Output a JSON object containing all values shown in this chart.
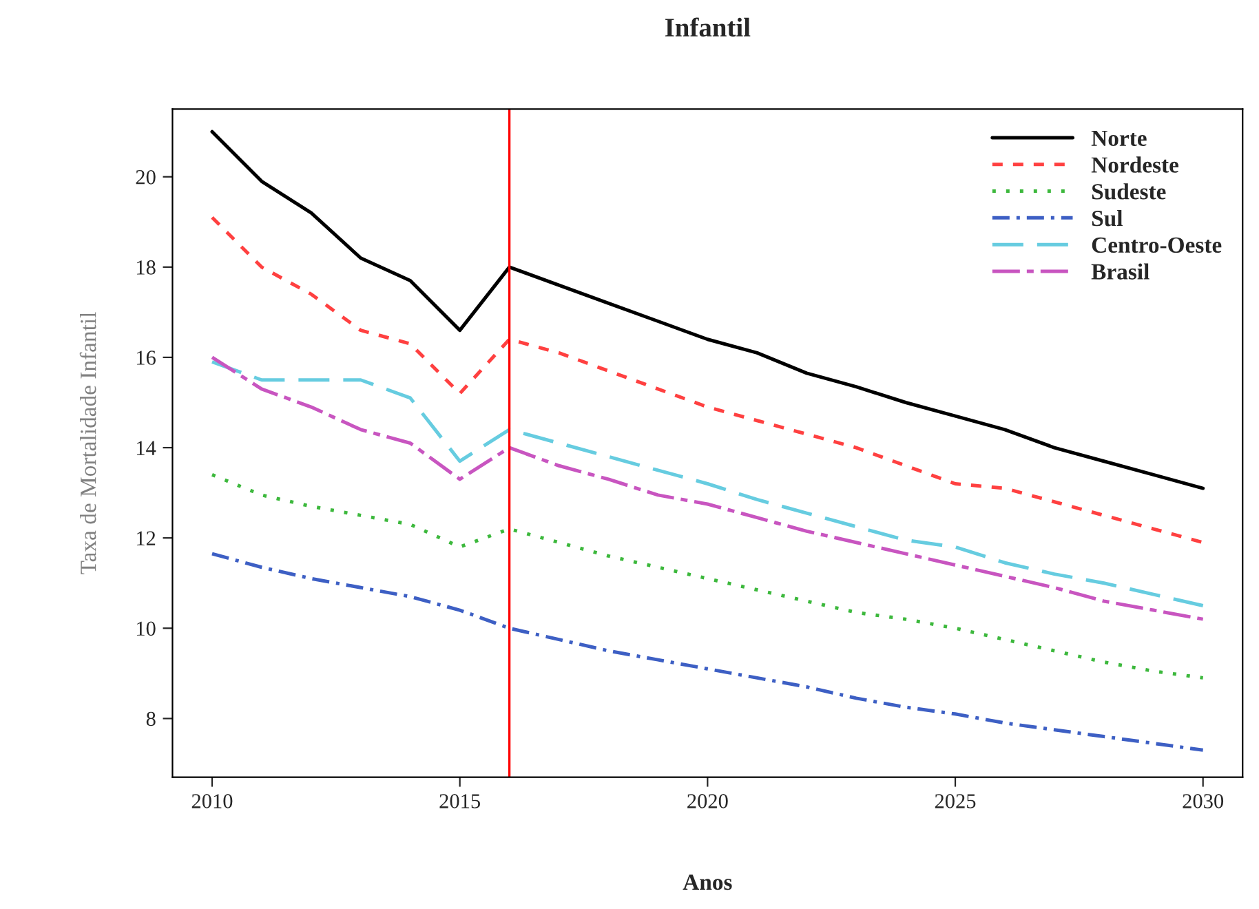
{
  "chart_data": {
    "type": "line",
    "title": "Infantil",
    "xlabel": "Anos",
    "ylabel": "Taxa de Mortalidade Infantil",
    "x": [
      2010,
      2011,
      2012,
      2013,
      2014,
      2015,
      2016,
      2017,
      2018,
      2019,
      2020,
      2021,
      2022,
      2023,
      2024,
      2025,
      2026,
      2027,
      2028,
      2029,
      2030
    ],
    "series": [
      {
        "name": "Norte",
        "color": "#000000",
        "line_style": "solid",
        "values": [
          21.0,
          19.9,
          19.2,
          18.2,
          17.7,
          16.6,
          18.0,
          17.6,
          17.2,
          16.8,
          16.4,
          16.1,
          15.65,
          15.35,
          15.0,
          14.7,
          14.4,
          14.0,
          13.7,
          13.4,
          13.1
        ]
      },
      {
        "name": "Nordeste",
        "color": "#ff4040",
        "line_style": "dashed",
        "values": [
          19.1,
          18.0,
          17.4,
          16.6,
          16.3,
          15.2,
          16.4,
          16.1,
          15.7,
          15.3,
          14.9,
          14.6,
          14.3,
          14.0,
          13.6,
          13.2,
          13.1,
          12.8,
          12.5,
          12.2,
          11.9
        ]
      },
      {
        "name": "Sudeste",
        "color": "#3cb83c",
        "line_style": "dotted",
        "values": [
          13.4,
          12.95,
          12.7,
          12.5,
          12.3,
          11.8,
          12.2,
          11.9,
          11.6,
          11.35,
          11.1,
          10.85,
          10.6,
          10.35,
          10.2,
          10.0,
          9.75,
          9.5,
          9.25,
          9.05,
          8.9
        ]
      },
      {
        "name": "Sul",
        "color": "#3d5fc4",
        "line_style": "dashdot",
        "values": [
          11.65,
          11.35,
          11.1,
          10.9,
          10.7,
          10.4,
          10.0,
          9.75,
          9.5,
          9.3,
          9.1,
          8.9,
          8.7,
          8.45,
          8.25,
          8.1,
          7.9,
          7.75,
          7.6,
          7.45,
          7.3
        ]
      },
      {
        "name": "Centro-Oeste",
        "color": "#66cce0",
        "line_style": "longdash",
        "values": [
          15.9,
          15.5,
          15.5,
          15.5,
          15.1,
          13.7,
          14.4,
          14.1,
          13.8,
          13.5,
          13.2,
          12.85,
          12.55,
          12.25,
          11.95,
          11.8,
          11.45,
          11.2,
          11.0,
          10.75,
          10.5
        ]
      },
      {
        "name": "Brasil",
        "color": "#c855c0",
        "line_style": "longdashdot",
        "values": [
          16.0,
          15.3,
          14.9,
          14.4,
          14.1,
          13.3,
          14.0,
          13.6,
          13.3,
          12.95,
          12.75,
          12.45,
          12.15,
          11.9,
          11.65,
          11.4,
          11.15,
          10.9,
          10.6,
          10.4,
          10.2
        ]
      }
    ],
    "xlim": [
      2009.2,
      2030.8
    ],
    "ylim": [
      6.7,
      21.5
    ],
    "xticks": [
      2010,
      2015,
      2020,
      2025,
      2030
    ],
    "yticks": [
      8,
      10,
      12,
      14,
      16,
      18,
      20
    ],
    "ref_lines": [
      {
        "axis": "x",
        "value": 2016,
        "color": "#ff0000"
      }
    ],
    "grid": false,
    "legend": "top right",
    "marker": "none"
  }
}
